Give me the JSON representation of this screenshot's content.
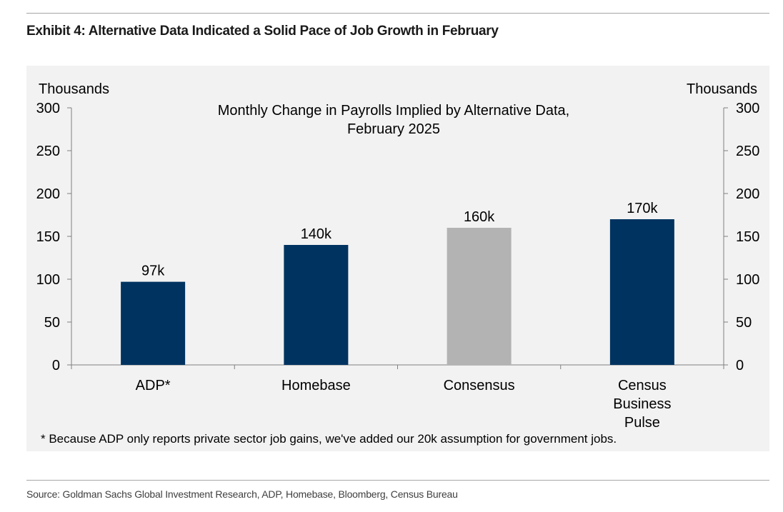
{
  "exhibit_title": "Exhibit 4: Alternative Data Indicated a Solid Pace of Job Growth in February",
  "footnote": "* Because ADP only reports private sector job gains, we've added our 20k assumption for government jobs.",
  "source": "Source: Goldman Sachs Global Investment Research, ADP, Homebase, Bloomberg, Census Bureau",
  "colors": {
    "dark": "#003360",
    "gray": "#b3b3b3"
  },
  "chart_data": {
    "type": "bar",
    "title_lines": [
      "Monthly Change in Payrolls Implied by Alternative Data,",
      "February 2025"
    ],
    "ylabel_left": "Thousands",
    "ylabel_right": "Thousands",
    "ylim": [
      0,
      300
    ],
    "yticks": [
      0,
      50,
      100,
      150,
      200,
      250,
      300
    ],
    "grid": false,
    "categories": [
      [
        "ADP*"
      ],
      [
        "Homebase"
      ],
      [
        "Consensus"
      ],
      [
        "Census",
        "Business",
        "Pulse"
      ]
    ],
    "values": [
      97,
      140,
      160,
      170
    ],
    "data_labels": [
      "97k",
      "140k",
      "160k",
      "170k"
    ],
    "bar_colors": [
      "#003360",
      "#003360",
      "#b3b3b3",
      "#003360"
    ]
  }
}
